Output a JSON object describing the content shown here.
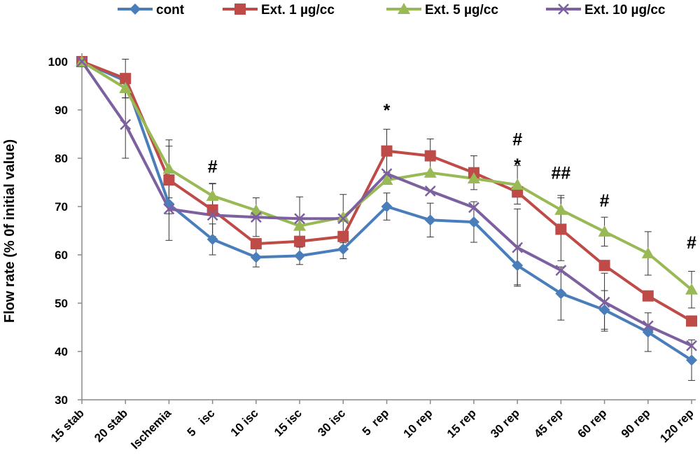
{
  "chart_data": {
    "type": "line",
    "title": "",
    "xlabel": "",
    "ylabel": "Flow rate (% 0f initial value)",
    "ylim": [
      30,
      100
    ],
    "yticks": [
      30,
      40,
      50,
      60,
      70,
      80,
      90,
      100
    ],
    "grid": false,
    "legend_position": "top",
    "categories": [
      "15 stab",
      "20 stab",
      "Ischemia",
      "5   isc",
      "10 isc",
      "15 isc",
      "30 isc",
      "5  rep",
      "10 rep",
      "15 rep",
      "30 rep",
      "45 rep",
      "60 rep",
      "90 rep",
      "120 rep"
    ],
    "series": [
      {
        "name": "cont",
        "color": "#4a7ebb",
        "marker": "diamond",
        "values": [
          100,
          96,
          70.5,
          63.2,
          59.5,
          59.8,
          61.2,
          70.0,
          67.2,
          66.8,
          57.8,
          52.0,
          48.6,
          44.0,
          38.2
        ],
        "error": [
          0,
          0,
          0,
          3.2,
          2.0,
          1.8,
          2.0,
          2.8,
          3.5,
          4.2,
          4.0,
          5.5,
          4.0,
          4.0,
          4.2
        ]
      },
      {
        "name": "Ext. 1 µg/cc",
        "color": "#be4b48",
        "marker": "square",
        "values": [
          100,
          96.5,
          75.5,
          69.3,
          62.3,
          62.8,
          63.8,
          81.5,
          80.5,
          77.0,
          73.0,
          65.3,
          57.8,
          51.5,
          46.3
        ],
        "error": [
          0,
          4.0,
          7.0,
          5.5,
          0,
          0,
          0,
          4.5,
          3.5,
          3.5,
          0,
          6.5,
          0,
          0,
          0
        ]
      },
      {
        "name": "Ext. 5 µg/cc",
        "color": "#98b954",
        "marker": "triangle",
        "values": [
          100,
          94.5,
          77.8,
          72.2,
          69.2,
          66.0,
          67.8,
          75.5,
          77.0,
          75.8,
          74.5,
          69.3,
          64.8,
          60.3,
          52.8
        ],
        "error": [
          0,
          2.0,
          6.0,
          2.5,
          0,
          0,
          0,
          0,
          0,
          0,
          4.0,
          3.0,
          3.0,
          4.5,
          3.8
        ]
      },
      {
        "name": "Ext. 10 µg/cc",
        "color": "#7d60a0",
        "marker": "x",
        "values": [
          100,
          87.0,
          69.5,
          68.2,
          67.8,
          67.5,
          67.5,
          76.8,
          73.2,
          69.8,
          61.5,
          56.8,
          50.2,
          45.3,
          41.2
        ],
        "error": [
          0,
          7.0,
          6.5,
          0,
          4.0,
          4.5,
          5.0,
          0,
          0,
          0,
          8.0,
          0,
          6.0,
          0,
          0
        ]
      }
    ],
    "annotations": [
      {
        "text": "#",
        "category": "5   isc",
        "y": 78.3
      },
      {
        "text": "*",
        "category": "5  rep",
        "y": 90.0
      },
      {
        "text": "#",
        "category": "30 rep",
        "y": 84.0
      },
      {
        "text": "*",
        "category": "30 rep",
        "y": 78.7
      },
      {
        "text": "##",
        "category": "45 rep",
        "y": 77.0
      },
      {
        "text": "#",
        "category": "60 rep",
        "y": 71.3
      },
      {
        "text": "#",
        "category": "120 rep",
        "y": 62.6
      }
    ]
  }
}
